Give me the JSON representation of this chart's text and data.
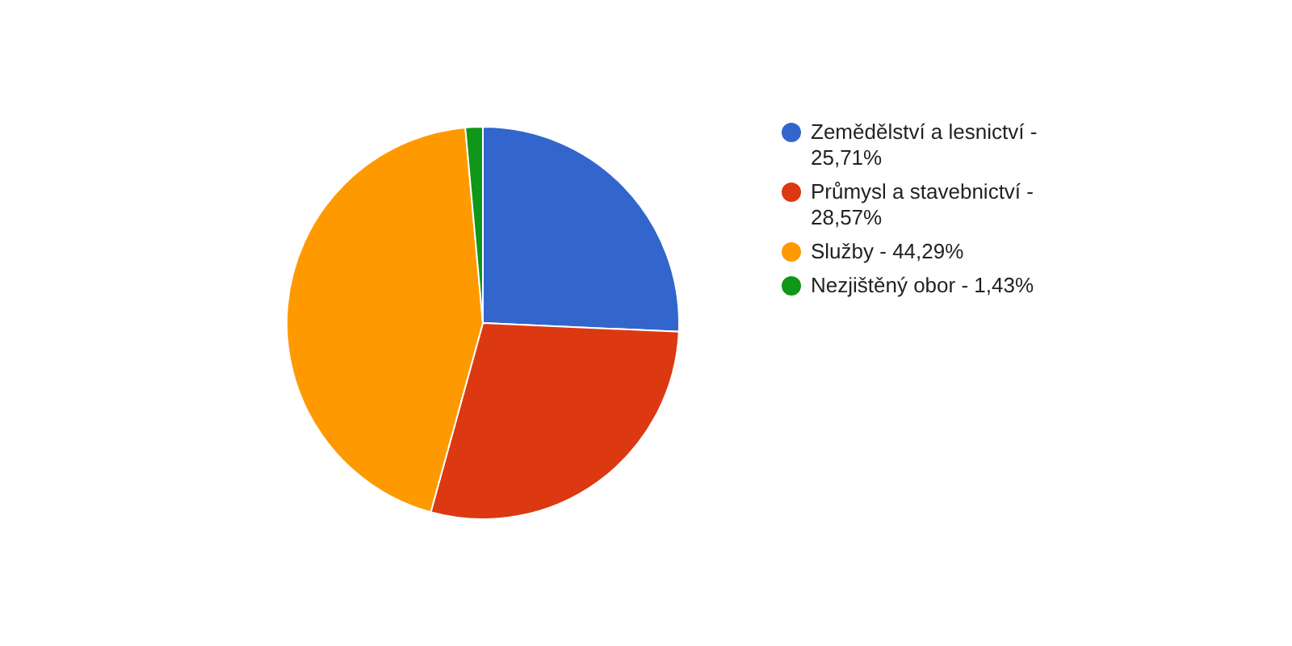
{
  "chart_data": {
    "type": "pie",
    "categories": [
      "Zemědělství a lesnictví - 25,71%",
      "Průmysl a stavebnictví - 28,57%",
      "Služby - 44,29%",
      "Nezjištěný obor - 1,43%"
    ],
    "values": [
      25.71,
      28.57,
      44.29,
      1.43
    ],
    "colors": [
      "#3366cc",
      "#dc3912",
      "#ff9900",
      "#109618"
    ],
    "legend": "right"
  }
}
